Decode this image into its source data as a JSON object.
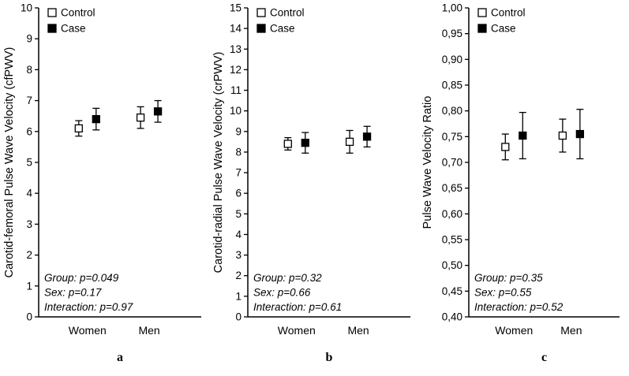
{
  "chart_data": [
    {
      "type": "scatter",
      "panel_label": "a",
      "ylabel": "Carotid-femoral Pulse Wave Velocity (cfPWV)",
      "ylim": [
        0,
        10
      ],
      "ytick_values": [
        0,
        1,
        2,
        3,
        4,
        5,
        6,
        7,
        8,
        9,
        10
      ],
      "ytick_labels": [
        "0",
        "1",
        "2",
        "3",
        "4",
        "5",
        "6",
        "7",
        "8",
        "9",
        "10"
      ],
      "categories": [
        "Women",
        "Men"
      ],
      "grid": false,
      "legend_position": "top-left",
      "series": [
        {
          "name": "Control",
          "marker": "open-square",
          "fill": "#ffffff",
          "edge": "#000000",
          "values": [
            6.1,
            6.45
          ],
          "errors": [
            0.25,
            0.35
          ]
        },
        {
          "name": "Case",
          "marker": "filled-square",
          "fill": "#000000",
          "edge": "#000000",
          "values": [
            6.4,
            6.65
          ],
          "errors": [
            0.35,
            0.35
          ]
        }
      ],
      "annotations": [
        "Group: p=0.049",
        "Sex: p=0.17",
        "Interaction: p=0.97"
      ]
    },
    {
      "type": "scatter",
      "panel_label": "b",
      "ylabel": "Carotid-radial Pulse Wave Velocity (crPWV)",
      "ylim": [
        0,
        15
      ],
      "ytick_values": [
        0,
        1,
        2,
        3,
        4,
        5,
        6,
        7,
        8,
        9,
        10,
        11,
        12,
        13,
        14,
        15
      ],
      "ytick_labels": [
        "0",
        "1",
        "2",
        "3",
        "4",
        "5",
        "6",
        "7",
        "8",
        "9",
        "10",
        "11",
        "12",
        "13",
        "14",
        "15"
      ],
      "categories": [
        "Women",
        "Men"
      ],
      "grid": false,
      "legend_position": "top-left",
      "series": [
        {
          "name": "Control",
          "marker": "open-square",
          "fill": "#ffffff",
          "edge": "#000000",
          "values": [
            8.4,
            8.5
          ],
          "errors": [
            0.3,
            0.55
          ]
        },
        {
          "name": "Case",
          "marker": "filled-square",
          "fill": "#000000",
          "edge": "#000000",
          "values": [
            8.45,
            8.75
          ],
          "errors": [
            0.5,
            0.5
          ]
        }
      ],
      "annotations": [
        "Group: p=0.32",
        "Sex: p=0.66",
        "Interaction: p=0.61"
      ]
    },
    {
      "type": "scatter",
      "panel_label": "c",
      "ylabel": "Pulse Wave Velocity Ratio",
      "ylim": [
        0.4,
        1.0
      ],
      "ytick_values": [
        0.4,
        0.45,
        0.5,
        0.55,
        0.6,
        0.65,
        0.7,
        0.75,
        0.8,
        0.85,
        0.9,
        0.95,
        1.0
      ],
      "ytick_labels": [
        "0,40",
        "0,45",
        "0,50",
        "0,55",
        "0,60",
        "0,65",
        "0,70",
        "0,75",
        "0,80",
        "0,85",
        "0,90",
        "0,95",
        "1,00"
      ],
      "categories": [
        "Women",
        "Men"
      ],
      "grid": false,
      "legend_position": "top-left",
      "series": [
        {
          "name": "Control",
          "marker": "open-square",
          "fill": "#ffffff",
          "edge": "#000000",
          "values": [
            0.73,
            0.752
          ],
          "errors": [
            0.025,
            0.032
          ]
        },
        {
          "name": "Case",
          "marker": "filled-square",
          "fill": "#000000",
          "edge": "#000000",
          "values": [
            0.752,
            0.755
          ],
          "errors": [
            0.045,
            0.048
          ]
        }
      ],
      "annotations": [
        "Group: p=0.35",
        "Sex: p=0.55",
        "Interaction: p=0.52"
      ]
    }
  ]
}
